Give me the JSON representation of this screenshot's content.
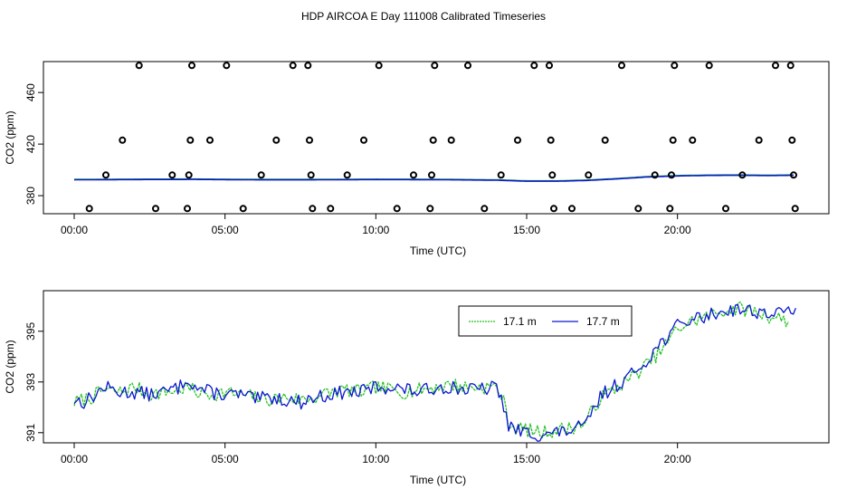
{
  "title": "HDP AIRCOA E  Day 111008  Calibrated Timeseries",
  "colors": {
    "green": "#22c21f",
    "blue": "#0a17cf",
    "circle": "#000000"
  },
  "chart_data": [
    {
      "type": "line+scatter",
      "xlabel": "Time (UTC)",
      "ylabel": "CO2 (ppm)",
      "xlim": [
        0,
        24
      ],
      "ylim": [
        366,
        484
      ],
      "x_ticks": [
        0,
        5,
        10,
        15,
        20
      ],
      "x_tick_labels": [
        "00:00",
        "05:00",
        "10:00",
        "15:00",
        "20:00"
      ],
      "y_ticks": [
        380,
        420,
        460
      ],
      "y_tick_labels": [
        "380",
        "420",
        "460"
      ],
      "scatter_points": [
        [
          0.5,
          370
        ],
        [
          1.05,
          396
        ],
        [
          1.6,
          423
        ],
        [
          2.15,
          481
        ],
        [
          2.7,
          370
        ],
        [
          3.25,
          396
        ],
        [
          3.75,
          370
        ],
        [
          3.8,
          396
        ],
        [
          3.85,
          423
        ],
        [
          3.9,
          481
        ],
        [
          4.5,
          423
        ],
        [
          5.05,
          481
        ],
        [
          5.6,
          370
        ],
        [
          6.2,
          396
        ],
        [
          6.7,
          423
        ],
        [
          7.25,
          481
        ],
        [
          7.75,
          481
        ],
        [
          7.8,
          423
        ],
        [
          7.85,
          396
        ],
        [
          7.9,
          370
        ],
        [
          8.5,
          370
        ],
        [
          9.05,
          396
        ],
        [
          9.6,
          423
        ],
        [
          10.1,
          481
        ],
        [
          10.7,
          370
        ],
        [
          11.25,
          396
        ],
        [
          11.8,
          370
        ],
        [
          11.85,
          396
        ],
        [
          11.9,
          423
        ],
        [
          11.95,
          481
        ],
        [
          12.5,
          423
        ],
        [
          13.05,
          481
        ],
        [
          13.6,
          370
        ],
        [
          14.15,
          396
        ],
        [
          14.7,
          423
        ],
        [
          15.25,
          481
        ],
        [
          15.75,
          481
        ],
        [
          15.8,
          423
        ],
        [
          15.85,
          396
        ],
        [
          15.9,
          370
        ],
        [
          16.5,
          370
        ],
        [
          17.05,
          396
        ],
        [
          17.6,
          423
        ],
        [
          18.15,
          481
        ],
        [
          18.7,
          370
        ],
        [
          19.25,
          396
        ],
        [
          19.75,
          370
        ],
        [
          19.8,
          396
        ],
        [
          19.85,
          423
        ],
        [
          19.9,
          481
        ],
        [
          20.5,
          423
        ],
        [
          21.05,
          481
        ],
        [
          21.6,
          370
        ],
        [
          22.15,
          396
        ],
        [
          22.7,
          423
        ],
        [
          23.25,
          481
        ],
        [
          23.75,
          481
        ],
        [
          23.8,
          423
        ],
        [
          23.85,
          396
        ],
        [
          23.9,
          370
        ]
      ],
      "series": [
        {
          "x": [
            0,
            2,
            4,
            6,
            8,
            10,
            12,
            14,
            15,
            16,
            17,
            18,
            19,
            20,
            21,
            22,
            23,
            23.9
          ],
          "values": [
            392.3,
            392.5,
            392.6,
            392.3,
            392.3,
            392.5,
            392.4,
            392.0,
            391.2,
            391.2,
            391.8,
            393.0,
            394.5,
            395.3,
            395.7,
            395.8,
            395.6,
            395.8
          ]
        }
      ]
    },
    {
      "type": "line",
      "xlabel": "Time (UTC)",
      "ylabel": "CO2 (ppm)",
      "xlim": [
        0,
        24
      ],
      "ylim": [
        390.6,
        396.6
      ],
      "x_ticks": [
        0,
        5,
        10,
        15,
        20
      ],
      "x_tick_labels": [
        "00:00",
        "05:00",
        "10:00",
        "15:00",
        "20:00"
      ],
      "y_ticks": [
        391,
        393,
        395
      ],
      "y_tick_labels": [
        "391",
        "393",
        "395"
      ],
      "legend_position": "top-right",
      "series": [
        {
          "name": "17.1 m",
          "color": "#22c21f",
          "seed": 7,
          "x_end": 23.75,
          "knots_x": [
            0,
            0.3,
            0.6,
            1.0,
            1.5,
            2.0,
            2.5,
            3.0,
            3.5,
            3.75,
            4.0,
            4.5,
            5.0,
            5.5,
            6.0,
            6.5,
            7.0,
            7.5,
            8.0,
            8.5,
            9.0,
            9.5,
            10.0,
            10.5,
            11.0,
            11.5,
            12.0,
            12.5,
            13.0,
            13.5,
            14.0,
            14.2,
            14.4,
            14.6,
            15.0,
            15.5,
            16.0,
            16.5,
            17.0,
            17.2,
            17.5,
            18.0,
            18.5,
            19.0,
            19.5,
            20.0,
            20.5,
            21.0,
            21.5,
            22.0,
            22.5,
            23.0,
            23.5,
            23.75
          ],
          "knots_y": [
            392.2,
            392.3,
            392.4,
            392.7,
            392.6,
            392.8,
            392.5,
            392.6,
            392.7,
            392.8,
            392.6,
            392.5,
            392.6,
            392.5,
            392.4,
            392.3,
            392.4,
            392.3,
            392.4,
            392.6,
            392.7,
            392.6,
            392.8,
            392.7,
            392.6,
            392.7,
            392.8,
            392.9,
            392.8,
            392.8,
            392.8,
            392.4,
            391.4,
            391.2,
            391.1,
            391.0,
            391.1,
            391.2,
            391.4,
            392.0,
            392.4,
            392.8,
            393.2,
            393.7,
            394.3,
            395.1,
            395.4,
            395.6,
            395.8,
            395.9,
            395.8,
            395.6,
            395.5,
            395.3
          ],
          "amplitude": 0.28
        },
        {
          "name": "17.7 m",
          "color": "#0a17cf",
          "seed": 13,
          "x_end": 23.95,
          "knots_x": [
            0,
            0.3,
            0.6,
            1.0,
            1.5,
            2.0,
            2.5,
            3.0,
            3.5,
            3.75,
            4.0,
            4.5,
            5.0,
            5.5,
            6.0,
            6.5,
            7.0,
            7.5,
            8.0,
            8.5,
            9.0,
            9.5,
            10.0,
            10.5,
            11.0,
            11.5,
            12.0,
            12.5,
            13.0,
            13.5,
            14.0,
            14.2,
            14.4,
            14.6,
            15.0,
            15.5,
            16.0,
            16.5,
            17.0,
            17.2,
            17.5,
            18.0,
            18.5,
            19.0,
            19.5,
            20.0,
            20.5,
            21.0,
            21.5,
            22.0,
            22.5,
            23.0,
            23.5,
            23.95
          ],
          "knots_y": [
            392.3,
            392.2,
            392.4,
            392.8,
            392.6,
            392.6,
            392.5,
            392.6,
            392.8,
            393.2,
            392.8,
            392.6,
            392.5,
            392.5,
            392.3,
            392.4,
            392.3,
            392.2,
            392.4,
            392.5,
            392.6,
            392.6,
            392.8,
            392.8,
            392.7,
            392.6,
            392.8,
            392.8,
            392.7,
            392.7,
            392.8,
            392.2,
            391.3,
            391.1,
            391.0,
            390.9,
            391.0,
            391.1,
            391.3,
            391.9,
            392.5,
            392.9,
            393.3,
            393.9,
            394.6,
            395.2,
            395.5,
            395.6,
            395.8,
            395.9,
            395.8,
            395.7,
            395.7,
            396.0
          ],
          "amplitude": 0.28
        }
      ]
    }
  ]
}
